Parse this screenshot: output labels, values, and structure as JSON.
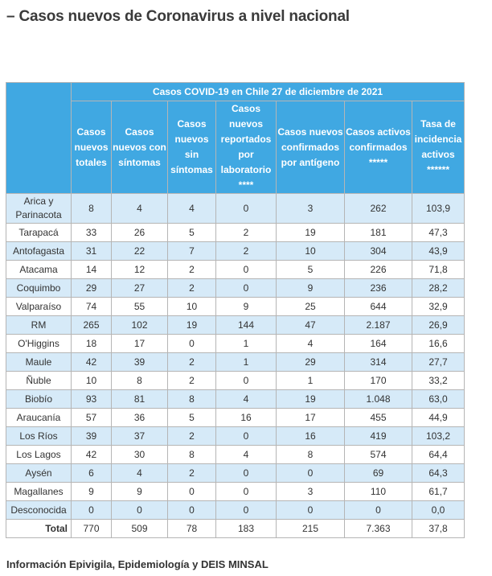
{
  "title": "– Casos nuevos de Coronavirus a nivel nacional",
  "table": {
    "caption": "Casos COVID-19 en Chile 27 de diciembre de 2021",
    "headers": [
      "Casos nuevos totales",
      "Casos nuevos con síntomas",
      "Casos nuevos sin síntomas",
      "Casos nuevos reportados por laboratorio ****",
      "Casos nuevos confirmados por antígeno",
      "Casos activos confirmados *****",
      "Tasa de incidencia activos ******"
    ],
    "rows": [
      {
        "region": "Arica y Parinacota",
        "values": [
          "8",
          "4",
          "4",
          "0",
          "3",
          "262",
          "103,9"
        ]
      },
      {
        "region": "Tarapacá",
        "values": [
          "33",
          "26",
          "5",
          "2",
          "19",
          "181",
          "47,3"
        ]
      },
      {
        "region": "Antofagasta",
        "values": [
          "31",
          "22",
          "7",
          "2",
          "10",
          "304",
          "43,9"
        ]
      },
      {
        "region": "Atacama",
        "values": [
          "14",
          "12",
          "2",
          "0",
          "5",
          "226",
          "71,8"
        ]
      },
      {
        "region": "Coquimbo",
        "values": [
          "29",
          "27",
          "2",
          "0",
          "9",
          "236",
          "28,2"
        ]
      },
      {
        "region": "Valparaíso",
        "values": [
          "74",
          "55",
          "10",
          "9",
          "25",
          "644",
          "32,9"
        ]
      },
      {
        "region": "RM",
        "values": [
          "265",
          "102",
          "19",
          "144",
          "47",
          "2.187",
          "26,9"
        ]
      },
      {
        "region": "O'Higgins",
        "values": [
          "18",
          "17",
          "0",
          "1",
          "4",
          "164",
          "16,6"
        ]
      },
      {
        "region": "Maule",
        "values": [
          "42",
          "39",
          "2",
          "1",
          "29",
          "314",
          "27,7"
        ]
      },
      {
        "region": "Ñuble",
        "values": [
          "10",
          "8",
          "2",
          "0",
          "1",
          "170",
          "33,2"
        ]
      },
      {
        "region": "Biobío",
        "values": [
          "93",
          "81",
          "8",
          "4",
          "19",
          "1.048",
          "63,0"
        ]
      },
      {
        "region": "Araucanía",
        "values": [
          "57",
          "36",
          "5",
          "16",
          "17",
          "455",
          "44,9"
        ]
      },
      {
        "region": "Los Ríos",
        "values": [
          "39",
          "37",
          "2",
          "0",
          "16",
          "419",
          "103,2"
        ]
      },
      {
        "region": "Los Lagos",
        "values": [
          "42",
          "30",
          "8",
          "4",
          "8",
          "574",
          "64,4"
        ]
      },
      {
        "region": "Aysén",
        "values": [
          "6",
          "4",
          "2",
          "0",
          "0",
          "69",
          "64,3"
        ]
      },
      {
        "region": "Magallanes",
        "values": [
          "9",
          "9",
          "0",
          "0",
          "3",
          "110",
          "61,7"
        ]
      },
      {
        "region": "Desconocida",
        "values": [
          "0",
          "0",
          "0",
          "0",
          "0",
          "0",
          "0,0"
        ]
      }
    ],
    "total": {
      "label": "Total",
      "values": [
        "770",
        "509",
        "78",
        "183",
        "215",
        "7.363",
        "37,8"
      ]
    }
  },
  "footer": "Información Epivigila, Epidemiología y DEIS MINSAL",
  "colors": {
    "header_blue": "#40a8e2",
    "stripe": "#d6eaf8",
    "border": "#b5b5b5"
  }
}
